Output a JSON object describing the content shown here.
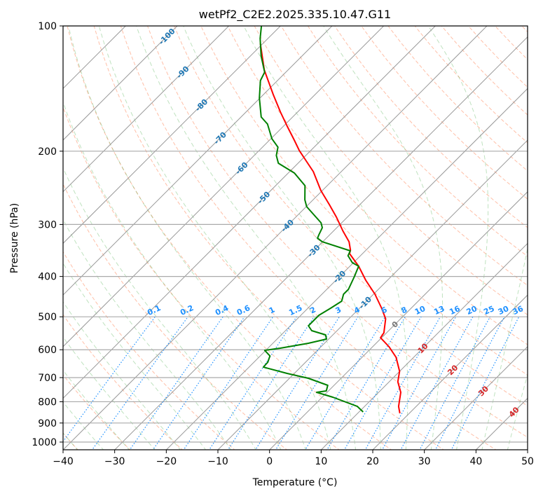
{
  "chart_data": {
    "type": "line",
    "title": "wetPf2_C2E2.2025.335.10.47.G11",
    "xlabel": "Temperature (°C)",
    "ylabel": "Pressure (hPa)",
    "xlim": [
      -40,
      50
    ],
    "ylim": [
      1043,
      100
    ],
    "x_ticks": [
      "−40",
      "−30",
      "−20",
      "−10",
      "0",
      "10",
      "20",
      "30",
      "40",
      "50"
    ],
    "x_tick_values": [
      -40,
      -30,
      -20,
      -10,
      0,
      10,
      20,
      30,
      40,
      50
    ],
    "y_ticks": [
      "100",
      "200",
      "300",
      "400",
      "500",
      "600",
      "700",
      "800",
      "900",
      "1000"
    ],
    "y_tick_values": [
      100,
      200,
      300,
      400,
      500,
      600,
      700,
      800,
      900,
      1000
    ],
    "grid": true,
    "isotherm_labels": [
      "-100",
      "-90",
      "-80",
      "-70",
      "-60",
      "-50",
      "-40",
      "-30",
      "-20",
      "-10",
      "0",
      "10",
      "20",
      "30",
      "40"
    ],
    "isotherm_label_values": [
      -100,
      -90,
      -80,
      -70,
      -60,
      -50,
      -40,
      -30,
      -20,
      -10,
      0,
      10,
      20,
      30,
      40
    ],
    "mixing_ratio_labels": [
      "0.1",
      "0.2",
      "0.4",
      "0.6",
      "1",
      "1.5",
      "2",
      "3",
      "4",
      "6",
      "8",
      "10",
      "13",
      "16",
      "20",
      "25",
      "30",
      "36"
    ],
    "mixing_ratio_values": [
      0.1,
      0.2,
      0.4,
      0.6,
      1,
      1.5,
      2,
      3,
      4,
      6,
      8,
      10,
      13,
      16,
      20,
      25,
      30,
      36
    ],
    "series": [
      {
        "name": "temperature",
        "color": "#ff0000",
        "pressure": [
          110.2,
          127.6,
          146.2,
          161.1,
          174.1,
          188.1,
          199.3,
          211.3,
          224.0,
          248.6,
          268.8,
          288.1,
          311.4,
          330.1,
          345.8,
          352.5,
          377.9,
          408.5,
          441.4,
          476.9,
          505.4,
          546.4,
          561.4,
          590.2,
          625.7,
          676.1,
          716.6,
          759.5,
          820.8,
          853.1
        ],
        "values": [
          -80.5,
          -74.6,
          -68.1,
          -63.3,
          -59.3,
          -55.2,
          -52.2,
          -48.8,
          -45.4,
          -40.3,
          -35.9,
          -32.1,
          -28.1,
          -24.9,
          -23.0,
          -22.5,
          -18.3,
          -14.2,
          -9.7,
          -5.7,
          -2.9,
          -0.5,
          -0.2,
          3.2,
          6.6,
          10.0,
          11.7,
          14.3,
          16.6,
          18.2
        ]
      },
      {
        "name": "dewpoint",
        "color": "#008000",
        "pressure": [
          100,
          107.2,
          118.2,
          129.2,
          135.3,
          149.1,
          165.5,
          172.1,
          186.7,
          195.6,
          204.8,
          213.8,
          225.7,
          242.0,
          261.6,
          271.9,
          297.2,
          305.4,
          317.5,
          323.6,
          330.1,
          347.1,
          356.6,
          370.7,
          377.9,
          400.6,
          429.5,
          441.4,
          458.7,
          476.9,
          495.7,
          515.3,
          525.4,
          539.9,
          552.7,
          565.7,
          579.0,
          594.9,
          602.0,
          620.9,
          643.0,
          660.6,
          683.9,
          702.8,
          730.5,
          753.6,
          759.5,
          780.4,
          820.8,
          846.4
        ],
        "values": [
          -83.7,
          -81.5,
          -77.9,
          -74.1,
          -73.3,
          -70.1,
          -66.1,
          -63.5,
          -59.8,
          -57.0,
          -55.7,
          -53.8,
          -48.8,
          -44.3,
          -41.6,
          -39.9,
          -34.0,
          -32.8,
          -32.1,
          -31.7,
          -30.1,
          -22.9,
          -22.4,
          -20.2,
          -18.3,
          -17.1,
          -15.8,
          -15.8,
          -14.8,
          -15.6,
          -16.5,
          -16.5,
          -16.5,
          -14.9,
          -11.4,
          -10.4,
          -13.1,
          -17.6,
          -20.2,
          -18.1,
          -17.3,
          -17.2,
          -11.4,
          -6.3,
          -1.2,
          -0.4,
          -2.0,
          2.1,
          8.6,
          10.8
        ]
      }
    ]
  }
}
